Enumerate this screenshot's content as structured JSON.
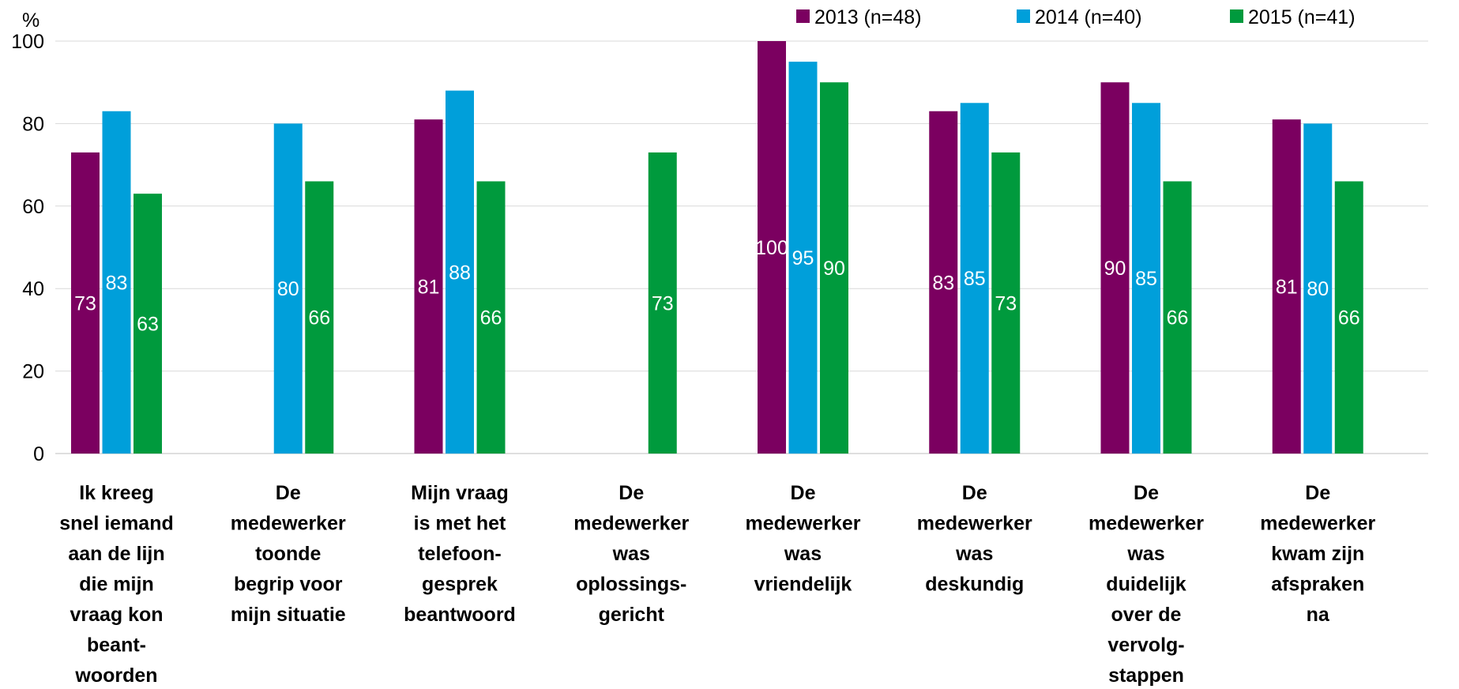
{
  "chart_data": {
    "type": "bar",
    "unit_label": "%",
    "ylim": [
      0,
      100
    ],
    "y_ticks": [
      0,
      20,
      40,
      60,
      80,
      100
    ],
    "grid": true,
    "legend_position": "top-right",
    "categories": [
      [
        "Ik kreeg",
        "snel iemand",
        "aan de lijn",
        "die mijn",
        "vraag kon",
        "beant-",
        "woorden"
      ],
      [
        "De",
        "medewerker",
        "toonde",
        "begrip voor",
        "mijn situatie"
      ],
      [
        "Mijn vraag",
        "is met het",
        "telefoon-",
        "gesprek",
        "beantwoord"
      ],
      [
        "De",
        "medewerker",
        "was",
        "oplossings-",
        "gericht"
      ],
      [
        "De",
        "medewerker",
        "was",
        "vriendelijk"
      ],
      [
        "De",
        "medewerker",
        "was",
        "deskundig"
      ],
      [
        "De",
        "medewerker",
        "was",
        "duidelijk",
        "over de",
        "vervolg-",
        "stappen"
      ],
      [
        "De",
        "medewerker",
        "kwam zijn",
        "afspraken",
        "na"
      ]
    ],
    "series": [
      {
        "name": "2013 (n=48)",
        "color": "#7B0060",
        "values": [
          73,
          null,
          81,
          null,
          100,
          83,
          90,
          81
        ]
      },
      {
        "name": "2014 (n=40)",
        "color": "#009FDA",
        "values": [
          83,
          80,
          88,
          null,
          95,
          85,
          85,
          80
        ]
      },
      {
        "name": "2015 (n=41)",
        "color": "#009A3D",
        "values": [
          63,
          66,
          66,
          73,
          90,
          73,
          66,
          66
        ]
      }
    ]
  }
}
